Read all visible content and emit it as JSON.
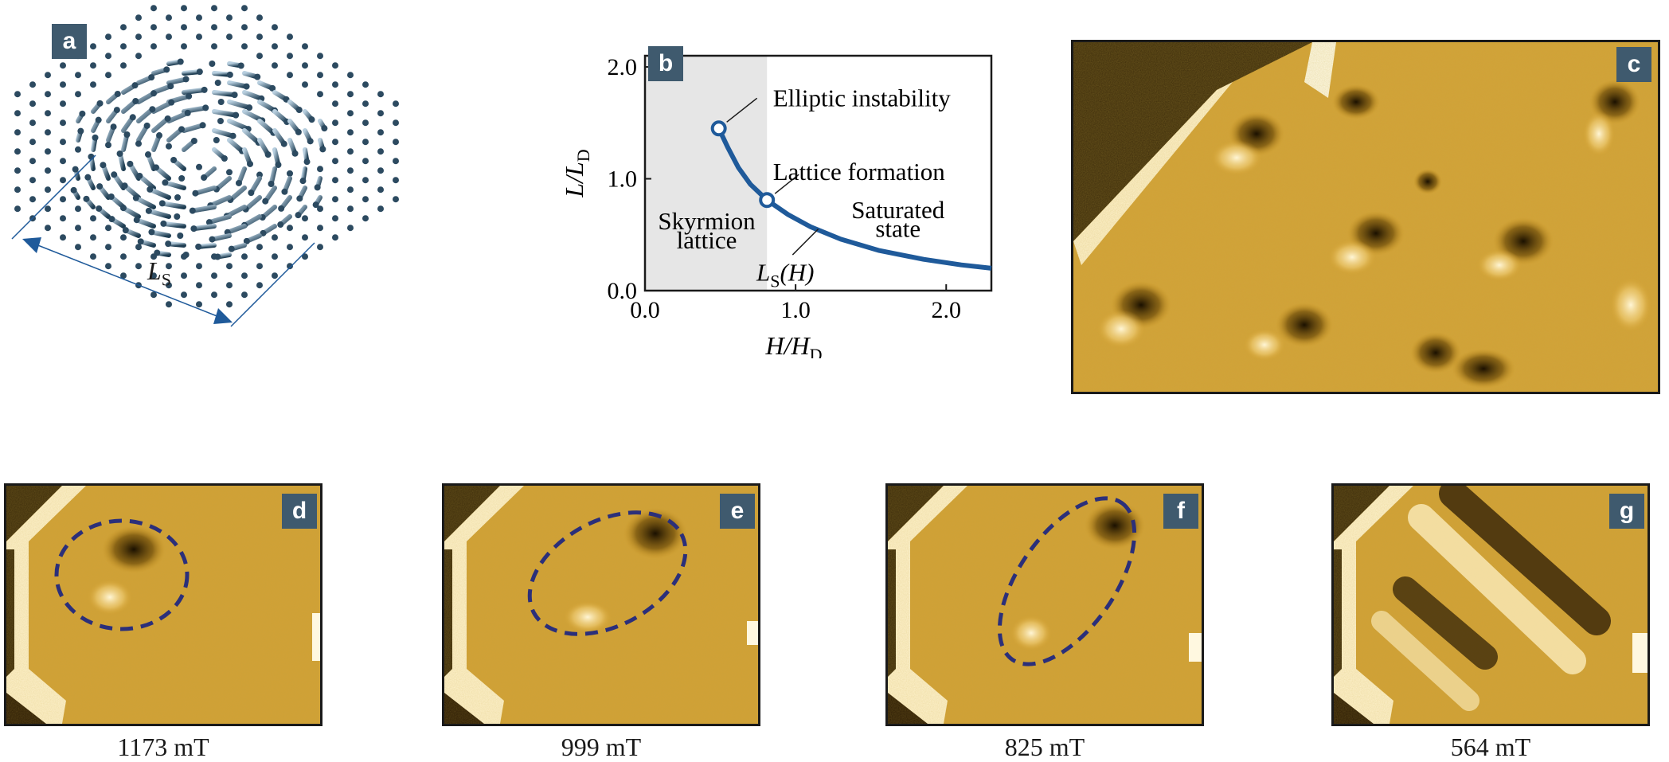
{
  "panels": {
    "a": {
      "badge": "a",
      "length_label": "L",
      "length_sub": "S"
    },
    "b": {
      "badge": "b"
    },
    "c": {
      "badge": "c"
    },
    "d": {
      "badge": "d",
      "field": "1173 mT"
    },
    "e": {
      "badge": "e",
      "field": "999 mT"
    },
    "f": {
      "badge": "f",
      "field": "825 mT"
    },
    "g": {
      "badge": "g",
      "field": "564 mT"
    }
  },
  "chart_data": {
    "type": "line",
    "xlabel": "H/H",
    "xlabel_sub": "D",
    "ylabel": "L/L",
    "ylabel_sub": "D",
    "xlim": [
      0,
      2.3
    ],
    "ylim": [
      0,
      2.1
    ],
    "xticks": [
      "0.0",
      "1.0",
      "2.0"
    ],
    "yticks": [
      "0.0",
      "1.0",
      "2.0"
    ],
    "shaded_region": {
      "x_from": 0,
      "x_to": 0.81
    },
    "series": [
      {
        "x": [
          0.49,
          0.55,
          0.62,
          0.7,
          0.81,
          0.95,
          1.1,
          1.3,
          1.55,
          1.85,
          2.1,
          2.3
        ],
        "y": [
          1.45,
          1.28,
          1.1,
          0.95,
          0.81,
          0.68,
          0.57,
          0.46,
          0.36,
          0.28,
          0.23,
          0.2
        ]
      }
    ],
    "points": [
      {
        "x": 0.49,
        "y": 1.45
      },
      {
        "x": 0.81,
        "y": 0.81
      }
    ],
    "annotations": {
      "elliptic": "Elliptic instability",
      "lattice_formation": "Lattice formation",
      "saturated_1": "Saturated",
      "saturated_2": "state",
      "skyrmion_1": "Skyrmion",
      "skyrmion_2": "lattice",
      "ls_label": "L",
      "ls_sub": "S",
      "ls_arg": "(H)"
    }
  },
  "colors": {
    "curve": "#1f5a9a",
    "badge": "#3f5a6e",
    "ellipse": "#2b2f7a",
    "shade": "#e6e6e6"
  }
}
